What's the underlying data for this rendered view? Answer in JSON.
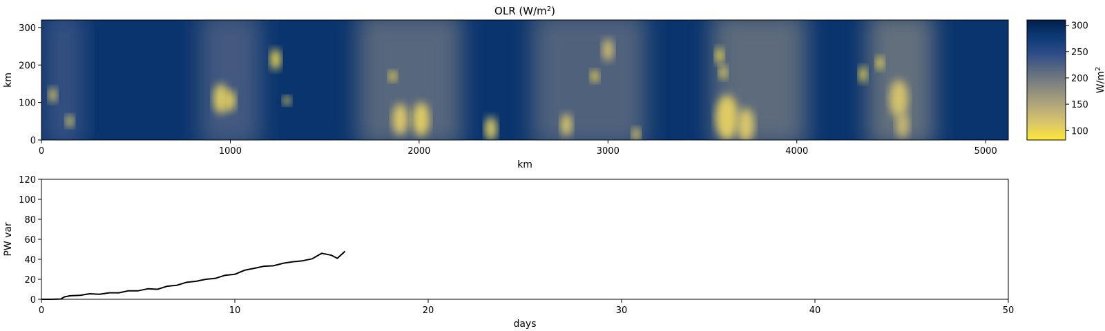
{
  "chart_data": [
    {
      "type": "heatmap",
      "title": "OLR (W/m",
      "title_sup": "2",
      "title_close": ")",
      "xlabel": "km",
      "ylabel": "km",
      "xlim": [
        0,
        5120
      ],
      "ylim": [
        0,
        320
      ],
      "xticks": [
        0,
        1000,
        2000,
        3000,
        4000,
        5000
      ],
      "yticks": [
        0,
        100,
        200,
        300
      ],
      "colormap": "cividis_r",
      "colorbar": {
        "label": "W/m",
        "label_sup": "2",
        "range": [
          82,
          310
        ],
        "ticks": [
          100,
          150,
          200,
          250,
          300
        ],
        "colors_low_to_high": [
          "#fde737",
          "#d9c66a",
          "#b4a87a",
          "#8a8a7f",
          "#5f6c7f",
          "#2f4d88",
          "#0d3a78",
          "#00204c"
        ]
      },
      "background_value": 285,
      "convective_bands": [
        {
          "x_center": 120,
          "x_width": 200,
          "intensity": 0.45
        },
        {
          "x_center": 1000,
          "x_width": 320,
          "intensity": 0.55
        },
        {
          "x_center": 1950,
          "x_width": 550,
          "intensity": 0.7
        },
        {
          "x_center": 2900,
          "x_width": 600,
          "intensity": 0.65
        },
        {
          "x_center": 3800,
          "x_width": 500,
          "intensity": 0.75
        },
        {
          "x_center": 4550,
          "x_width": 350,
          "intensity": 0.8
        }
      ],
      "cold_cloud_cells": [
        {
          "x": 60,
          "y": 120,
          "r": 20,
          "value": 110
        },
        {
          "x": 150,
          "y": 50,
          "r": 16,
          "value": 110
        },
        {
          "x": 950,
          "y": 110,
          "r": 40,
          "value": 110
        },
        {
          "x": 1000,
          "y": 105,
          "r": 28,
          "value": 105
        },
        {
          "x": 1240,
          "y": 215,
          "r": 28,
          "value": 100
        },
        {
          "x": 1300,
          "y": 105,
          "r": 12,
          "value": 105
        },
        {
          "x": 1860,
          "y": 170,
          "r": 14,
          "value": 95
        },
        {
          "x": 1900,
          "y": 55,
          "r": 42,
          "value": 115
        },
        {
          "x": 2010,
          "y": 55,
          "r": 45,
          "value": 110
        },
        {
          "x": 2380,
          "y": 30,
          "r": 32,
          "value": 110
        },
        {
          "x": 2780,
          "y": 40,
          "r": 30,
          "value": 115
        },
        {
          "x": 2930,
          "y": 170,
          "r": 16,
          "value": 95
        },
        {
          "x": 3000,
          "y": 240,
          "r": 30,
          "value": 125
        },
        {
          "x": 3150,
          "y": 15,
          "r": 18,
          "value": 110
        },
        {
          "x": 3590,
          "y": 225,
          "r": 22,
          "value": 100
        },
        {
          "x": 3610,
          "y": 180,
          "r": 18,
          "value": 105
        },
        {
          "x": 3630,
          "y": 60,
          "r": 60,
          "value": 110
        },
        {
          "x": 3730,
          "y": 40,
          "r": 45,
          "value": 115
        },
        {
          "x": 4350,
          "y": 175,
          "r": 22,
          "value": 100
        },
        {
          "x": 4440,
          "y": 205,
          "r": 18,
          "value": 100
        },
        {
          "x": 4540,
          "y": 110,
          "r": 50,
          "value": 120
        },
        {
          "x": 4560,
          "y": 40,
          "r": 35,
          "value": 130
        }
      ]
    },
    {
      "type": "line",
      "xlabel": "days",
      "ylabel": "PW var",
      "xlim": [
        0,
        50
      ],
      "ylim": [
        0,
        120
      ],
      "xticks": [
        0,
        10,
        20,
        30,
        40,
        50
      ],
      "yticks": [
        0,
        20,
        40,
        60,
        80,
        100,
        120
      ],
      "color": "#000000",
      "series": [
        {
          "x": [
            0,
            0.5,
            1.0,
            1.2,
            1.5,
            2.0,
            2.5,
            3.0,
            3.5,
            4.0,
            4.5,
            5.0,
            5.5,
            6.0,
            6.5,
            7.0,
            7.5,
            8.0,
            8.5,
            9.0,
            9.5,
            10.0,
            10.5,
            11.0,
            11.5,
            12.0,
            12.5,
            13.0,
            13.5,
            14.0,
            14.5,
            15.0,
            15.3,
            15.7
          ],
          "y": [
            0,
            0,
            0.3,
            2.5,
            3.5,
            4.0,
            5.5,
            5.0,
            6.5,
            6.5,
            8.5,
            8.5,
            10.5,
            10.0,
            13.0,
            14.0,
            17.0,
            18.0,
            20.0,
            21.0,
            24.0,
            25.0,
            29.0,
            31.0,
            33.0,
            33.5,
            36.0,
            37.5,
            38.5,
            40.5,
            46.0,
            44.0,
            41.0,
            48.0
          ]
        }
      ]
    }
  ]
}
